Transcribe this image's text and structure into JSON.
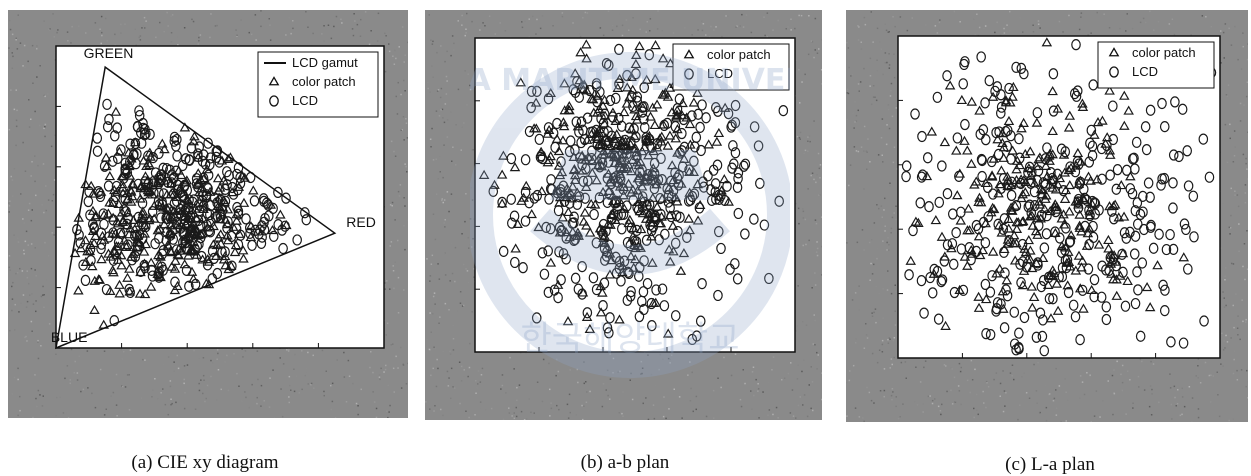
{
  "figure": {
    "captions": [
      "(a) CIE xy diagram",
      "(b) a-b plan",
      "(c) L-a plan"
    ],
    "watermark_text": "KOREA MARITIME UNIVERSITY",
    "watermark_korean": "한국해양대학교"
  },
  "chart_data": [
    {
      "type": "scatter",
      "title": "",
      "caption": "(a) CIE xy diagram",
      "xlabel": "",
      "ylabel": "",
      "xlim": [
        0,
        1
      ],
      "ylim": [
        0,
        1
      ],
      "grid": false,
      "legend": {
        "location": "top-right",
        "entries": [
          "LCD gamut",
          "color patch",
          "LCD"
        ]
      },
      "annotations": [
        {
          "text": "GREEN",
          "x": 0.16,
          "y": 0.96
        },
        {
          "text": "RED",
          "x": 0.93,
          "y": 0.4
        },
        {
          "text": "BLUE",
          "x": 0.04,
          "y": 0.02
        }
      ],
      "series": [
        {
          "name": "LCD gamut",
          "kind": "line",
          "closed": true,
          "points": [
            [
              0.15,
              0.93
            ],
            [
              0.85,
              0.38
            ],
            [
              0.0,
              0.0
            ]
          ]
        },
        {
          "name": "color patch",
          "kind": "triangle-marker",
          "count": 300,
          "seed": 11,
          "distribution": {
            "center": [
              0.32,
              0.42
            ],
            "spread": [
              0.16,
              0.14
            ]
          }
        },
        {
          "name": "LCD",
          "kind": "circle-marker",
          "count": 320,
          "seed": 17,
          "distribution": {
            "center": [
              0.38,
              0.48
            ],
            "spread": [
              0.2,
              0.17
            ]
          }
        }
      ]
    },
    {
      "type": "scatter",
      "title": "",
      "caption": "(b) a-b plan",
      "xlabel": "",
      "ylabel": "",
      "xlim": [
        0,
        1
      ],
      "ylim": [
        0,
        1
      ],
      "grid": false,
      "legend": {
        "location": "top-right",
        "entries": [
          "color patch",
          "LCD"
        ]
      },
      "series": [
        {
          "name": "color patch",
          "kind": "triangle-marker",
          "count": 330,
          "seed": 23,
          "distribution": {
            "center": [
              0.44,
              0.58
            ],
            "spread": [
              0.14,
              0.19
            ]
          }
        },
        {
          "name": "LCD",
          "kind": "circle-marker",
          "count": 360,
          "seed": 29,
          "distribution": {
            "center": [
              0.47,
              0.52
            ],
            "spread": [
              0.2,
              0.22
            ]
          }
        }
      ]
    },
    {
      "type": "scatter",
      "title": "",
      "caption": "(c) L-a plan",
      "xlabel": "",
      "ylabel": "",
      "xlim": [
        0,
        1
      ],
      "ylim": [
        0,
        1
      ],
      "grid": false,
      "legend": {
        "location": "top-right",
        "entries": [
          "color patch",
          "LCD"
        ]
      },
      "series": [
        {
          "name": "color patch",
          "kind": "triangle-marker",
          "count": 270,
          "seed": 31,
          "distribution": {
            "center": [
              0.42,
              0.45
            ],
            "spread": [
              0.17,
              0.18
            ]
          }
        },
        {
          "name": "LCD",
          "kind": "circle-marker",
          "count": 300,
          "seed": 37,
          "distribution": {
            "center": [
              0.47,
              0.46
            ],
            "spread": [
              0.24,
              0.24
            ]
          }
        }
      ]
    }
  ],
  "colors": {
    "panel_bg": "#8a8a8a",
    "plot_bg": "#ffffff",
    "marker": "#1a1a1a",
    "watermark": "#8fa6c9"
  }
}
